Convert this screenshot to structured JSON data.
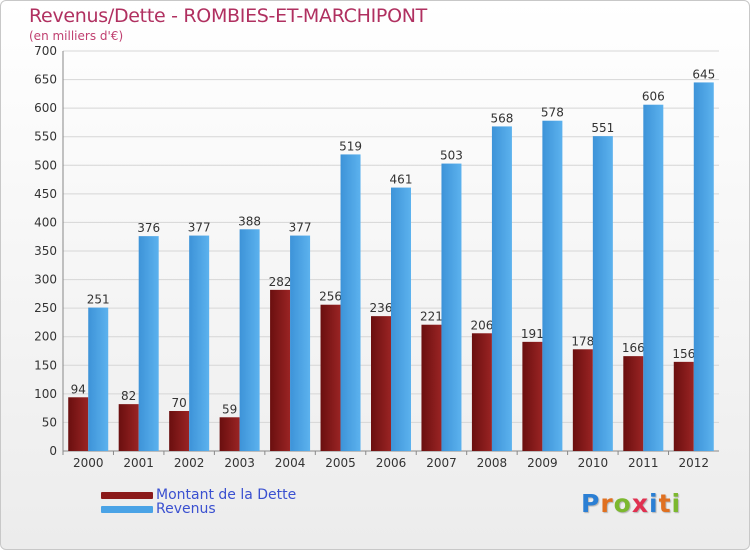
{
  "title": "Revenus/Dette - ROMBIES-ET-MARCHIPONT",
  "subtitle": "(en milliers d'€)",
  "legend": {
    "dette_label": "Montant de la Dette",
    "revenus_label": "Revenus"
  },
  "logo": {
    "letters": [
      "P",
      "r",
      "o",
      "x",
      "i",
      "t",
      "i"
    ],
    "colors": [
      "#2b7fd4",
      "#e07020",
      "#7cb82f",
      "#e03050",
      "#2b7fd4",
      "#e07020",
      "#7cb82f"
    ]
  },
  "colors": {
    "dette": "#8b1a1a",
    "revenus": "#4aa3e6",
    "title": "#b03060",
    "legend_text": "#3a50d0"
  },
  "chart_data": {
    "type": "bar",
    "title": "Revenus/Dette - ROMBIES-ET-MARCHIPONT",
    "ylabel": "(en milliers d'€)",
    "categories": [
      "2000",
      "2001",
      "2002",
      "2003",
      "2004",
      "2005",
      "2006",
      "2007",
      "2008",
      "2009",
      "2010",
      "2011",
      "2012"
    ],
    "series": [
      {
        "name": "Montant de la Dette",
        "values": [
          94,
          82,
          70,
          59,
          282,
          256,
          236,
          221,
          206,
          191,
          178,
          166,
          156
        ]
      },
      {
        "name": "Revenus",
        "values": [
          251,
          376,
          377,
          388,
          377,
          519,
          461,
          503,
          568,
          578,
          551,
          606,
          645
        ]
      }
    ],
    "ylim": [
      0,
      700
    ],
    "yticks": [
      0,
      50,
      100,
      150,
      200,
      250,
      300,
      350,
      400,
      450,
      500,
      550,
      600,
      650,
      700
    ],
    "grid": true,
    "legend_position": "bottom-left"
  }
}
